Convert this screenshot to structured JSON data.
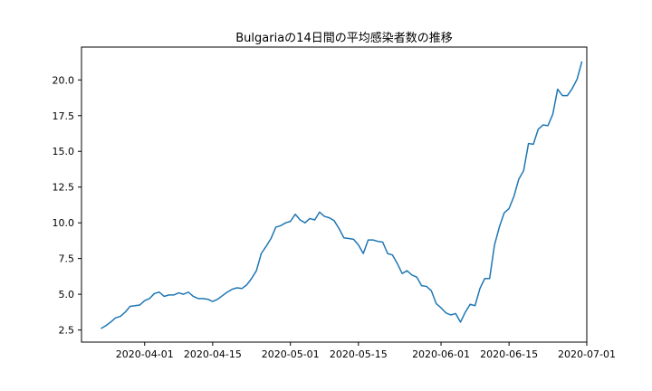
{
  "chart_data": {
    "type": "line",
    "title": "Bulgariaの14日間の平均感染者数の推移",
    "xlabel": "",
    "ylabel": "",
    "line_color": "#1f77b4",
    "x_range": [
      "2020-03-19",
      "2020-07-01"
    ],
    "ylim": [
      1.65,
      22.3
    ],
    "x_ticks": [
      "2020-04-01",
      "2020-04-15",
      "2020-05-01",
      "2020-05-15",
      "2020-06-01",
      "2020-06-15",
      "2020-07-01"
    ],
    "y_ticks": [
      2.5,
      5.0,
      7.5,
      10.0,
      12.5,
      15.0,
      17.5,
      20.0
    ],
    "y_tick_labels": [
      "2.5",
      "5.0",
      "7.5",
      "10.0",
      "12.5",
      "15.0",
      "17.5",
      "20.0"
    ],
    "series": [
      {
        "name": "",
        "x": [
          "2020-03-23",
          "2020-03-24",
          "2020-03-25",
          "2020-03-26",
          "2020-03-27",
          "2020-03-28",
          "2020-03-29",
          "2020-03-30",
          "2020-03-31",
          "2020-04-01",
          "2020-04-02",
          "2020-04-03",
          "2020-04-04",
          "2020-04-05",
          "2020-04-06",
          "2020-04-07",
          "2020-04-08",
          "2020-04-09",
          "2020-04-10",
          "2020-04-11",
          "2020-04-12",
          "2020-04-13",
          "2020-04-14",
          "2020-04-15",
          "2020-04-16",
          "2020-04-17",
          "2020-04-18",
          "2020-04-19",
          "2020-04-20",
          "2020-04-21",
          "2020-04-22",
          "2020-04-23",
          "2020-04-24",
          "2020-04-25",
          "2020-04-26",
          "2020-04-27",
          "2020-04-28",
          "2020-04-29",
          "2020-04-30",
          "2020-05-01",
          "2020-05-02",
          "2020-05-03",
          "2020-05-04",
          "2020-05-05",
          "2020-05-06",
          "2020-05-07",
          "2020-05-08",
          "2020-05-09",
          "2020-05-10",
          "2020-05-11",
          "2020-05-12",
          "2020-05-13",
          "2020-05-14",
          "2020-05-15",
          "2020-05-16",
          "2020-05-17",
          "2020-05-18",
          "2020-05-19",
          "2020-05-20",
          "2020-05-21",
          "2020-05-22",
          "2020-05-23",
          "2020-05-24",
          "2020-05-25",
          "2020-05-26",
          "2020-05-27",
          "2020-05-28",
          "2020-05-29",
          "2020-05-30",
          "2020-05-31",
          "2020-06-01",
          "2020-06-02",
          "2020-06-03",
          "2020-06-04",
          "2020-06-05",
          "2020-06-06",
          "2020-06-07",
          "2020-06-08",
          "2020-06-09",
          "2020-06-10",
          "2020-06-11",
          "2020-06-12",
          "2020-06-13",
          "2020-06-14",
          "2020-06-15",
          "2020-06-16",
          "2020-06-17",
          "2020-06-18",
          "2020-06-19",
          "2020-06-20",
          "2020-06-21",
          "2020-06-22",
          "2020-06-23",
          "2020-06-24",
          "2020-06-25",
          "2020-06-26",
          "2020-06-27",
          "2020-06-28",
          "2020-06-29",
          "2020-06-30"
        ],
        "y": [
          2.6,
          2.8,
          3.05,
          3.35,
          3.45,
          3.75,
          4.15,
          4.2,
          4.25,
          4.55,
          4.7,
          5.05,
          5.15,
          4.85,
          4.95,
          4.95,
          5.1,
          5.0,
          5.15,
          4.85,
          4.7,
          4.7,
          4.65,
          4.5,
          4.65,
          4.9,
          5.15,
          5.35,
          5.45,
          5.4,
          5.65,
          6.1,
          6.65,
          7.85,
          8.35,
          8.9,
          9.7,
          9.8,
          10.0,
          10.1,
          10.6,
          10.2,
          10.0,
          10.3,
          10.2,
          10.75,
          10.45,
          10.35,
          10.15,
          9.6,
          8.95,
          8.9,
          8.85,
          8.45,
          7.85,
          8.8,
          8.8,
          8.7,
          8.65,
          7.85,
          7.75,
          7.15,
          6.45,
          6.65,
          6.35,
          6.2,
          5.6,
          5.55,
          5.25,
          4.35,
          4.05,
          3.7,
          3.55,
          3.65,
          3.05,
          3.75,
          4.3,
          4.2,
          5.4,
          6.1,
          6.1,
          8.45,
          9.7,
          10.7,
          11.0,
          11.85,
          13.05,
          13.65,
          15.55,
          15.5,
          16.55,
          16.85,
          16.8,
          17.6,
          19.35,
          18.9,
          18.9,
          19.4,
          20.05,
          21.3
        ]
      }
    ]
  }
}
